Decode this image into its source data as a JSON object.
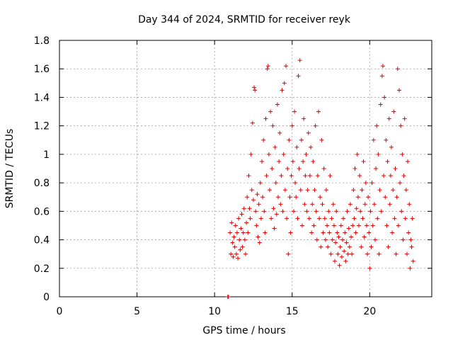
{
  "chart_data": {
    "type": "scatter",
    "title": "Day 344 of 2024, SRMTID for receiver reyk",
    "xlabel": "GPS time / hours",
    "ylabel": "SRMTID / TECUs",
    "xlim": [
      0,
      24
    ],
    "ylim": [
      0,
      1.8
    ],
    "xticks": [
      0,
      5,
      10,
      15,
      20
    ],
    "xtick_labels": [
      "0",
      "5",
      "10",
      "15",
      "20"
    ],
    "yticks": [
      0,
      0.2,
      0.4,
      0.6,
      0.8,
      1,
      1.2,
      1.4,
      1.6,
      1.8
    ],
    "ytick_labels": [
      "0",
      "0.2",
      "0.4",
      "0.6",
      "0.8",
      "1",
      "1.2",
      "1.4",
      "1.6",
      "1.8"
    ],
    "grid": true,
    "marker": "+",
    "marker_color": "#e00000",
    "series": [
      {
        "name": "SRMTID",
        "points": [
          [
            10.85,
            0.0
          ],
          [
            10.9,
            0.0
          ],
          [
            11.0,
            0.45
          ],
          [
            11.05,
            0.3
          ],
          [
            11.1,
            0.52
          ],
          [
            11.15,
            0.38
          ],
          [
            11.2,
            0.28
          ],
          [
            11.25,
            0.42
          ],
          [
            11.3,
            0.35
          ],
          [
            11.35,
            0.5
          ],
          [
            11.4,
            0.3
          ],
          [
            11.45,
            0.45
          ],
          [
            11.5,
            0.27
          ],
          [
            11.55,
            0.55
          ],
          [
            11.6,
            0.4
          ],
          [
            11.65,
            0.33
          ],
          [
            11.7,
            0.48
          ],
          [
            11.75,
            0.58
          ],
          [
            11.8,
            0.35
          ],
          [
            11.85,
            0.45
          ],
          [
            11.9,
            0.62
          ],
          [
            11.95,
            0.4
          ],
          [
            12.0,
            0.3
          ],
          [
            12.05,
            0.52
          ],
          [
            12.1,
            0.7
          ],
          [
            12.15,
            0.45
          ],
          [
            12.2,
            0.85
          ],
          [
            12.25,
            0.62
          ],
          [
            12.3,
            0.55
          ],
          [
            12.35,
            1.0
          ],
          [
            12.4,
            0.75
          ],
          [
            12.45,
            1.22
          ],
          [
            12.5,
            0.68
          ],
          [
            12.55,
            1.47
          ],
          [
            12.6,
            1.45
          ],
          [
            12.65,
            0.6
          ],
          [
            12.7,
            0.5
          ],
          [
            12.75,
            0.72
          ],
          [
            12.8,
            0.42
          ],
          [
            12.85,
            0.65
          ],
          [
            12.9,
            0.38
          ],
          [
            12.95,
            0.8
          ],
          [
            13.0,
            0.55
          ],
          [
            13.05,
            0.95
          ],
          [
            13.1,
            0.7
          ],
          [
            13.15,
            1.1
          ],
          [
            13.2,
            0.6
          ],
          [
            13.25,
            0.45
          ],
          [
            13.3,
            1.25
          ],
          [
            13.35,
            0.85
          ],
          [
            13.4,
            1.6
          ],
          [
            13.45,
            1.62
          ],
          [
            13.5,
            1.0
          ],
          [
            13.55,
            0.75
          ],
          [
            13.6,
            1.3
          ],
          [
            13.65,
            0.55
          ],
          [
            13.7,
            0.9
          ],
          [
            13.75,
            1.2
          ],
          [
            13.8,
            0.62
          ],
          [
            13.85,
            0.48
          ],
          [
            13.9,
            1.05
          ],
          [
            13.95,
            0.8
          ],
          [
            14.0,
            0.58
          ],
          [
            14.05,
            1.35
          ],
          [
            14.1,
            0.7
          ],
          [
            14.15,
            0.95
          ],
          [
            14.2,
            1.15
          ],
          [
            14.25,
            0.65
          ],
          [
            14.3,
            0.85
          ],
          [
            14.35,
            1.45
          ],
          [
            14.4,
            0.6
          ],
          [
            14.45,
            1.0
          ],
          [
            14.5,
            1.5
          ],
          [
            14.55,
            0.75
          ],
          [
            14.6,
            1.62
          ],
          [
            14.65,
            0.55
          ],
          [
            14.7,
            0.9
          ],
          [
            14.75,
            0.3
          ],
          [
            14.8,
            1.1
          ],
          [
            14.85,
            0.7
          ],
          [
            14.9,
            0.45
          ],
          [
            14.95,
            0.85
          ],
          [
            15.0,
            1.2
          ],
          [
            15.05,
            0.95
          ],
          [
            15.1,
            0.6
          ],
          [
            15.15,
            1.3
          ],
          [
            15.2,
            0.8
          ],
          [
            15.25,
            0.7
          ],
          [
            15.3,
            1.05
          ],
          [
            15.35,
            0.55
          ],
          [
            15.4,
            1.55
          ],
          [
            15.45,
            0.9
          ],
          [
            15.5,
            1.66
          ],
          [
            15.55,
            0.75
          ],
          [
            15.6,
            1.1
          ],
          [
            15.65,
            0.5
          ],
          [
            15.7,
            0.95
          ],
          [
            15.75,
            1.25
          ],
          [
            15.8,
            0.65
          ],
          [
            15.85,
            0.85
          ],
          [
            15.9,
            1.0
          ],
          [
            15.95,
            0.6
          ],
          [
            16.0,
            0.75
          ],
          [
            16.05,
            1.15
          ],
          [
            16.1,
            0.55
          ],
          [
            16.15,
            0.85
          ],
          [
            16.2,
            1.05
          ],
          [
            16.25,
            0.45
          ],
          [
            16.3,
            0.65
          ],
          [
            16.35,
            0.95
          ],
          [
            16.4,
            0.5
          ],
          [
            16.45,
            0.75
          ],
          [
            16.5,
            1.2
          ],
          [
            16.55,
            0.6
          ],
          [
            16.6,
            0.4
          ],
          [
            16.65,
            0.85
          ],
          [
            16.7,
            1.3
          ],
          [
            16.75,
            0.55
          ],
          [
            16.8,
            0.7
          ],
          [
            16.85,
            0.35
          ],
          [
            16.9,
            1.1
          ],
          [
            16.95,
            0.65
          ],
          [
            17.0,
            0.45
          ],
          [
            17.05,
            0.9
          ],
          [
            17.1,
            0.55
          ],
          [
            17.15,
            0.4
          ],
          [
            17.2,
            0.75
          ],
          [
            17.25,
            0.5
          ],
          [
            17.3,
            0.35
          ],
          [
            17.35,
            0.6
          ],
          [
            17.4,
            0.45
          ],
          [
            17.45,
            0.85
          ],
          [
            17.5,
            0.3
          ],
          [
            17.55,
            0.55
          ],
          [
            17.6,
            0.4
          ],
          [
            17.65,
            0.65
          ],
          [
            17.7,
            0.5
          ],
          [
            17.75,
            0.25
          ],
          [
            17.8,
            0.38
          ],
          [
            17.85,
            0.6
          ],
          [
            17.9,
            0.45
          ],
          [
            17.95,
            0.3
          ],
          [
            18.0,
            0.42
          ],
          [
            18.05,
            0.22
          ],
          [
            18.1,
            0.35
          ],
          [
            18.15,
            0.5
          ],
          [
            18.2,
            0.28
          ],
          [
            18.25,
            0.4
          ],
          [
            18.3,
            0.55
          ],
          [
            18.35,
            0.32
          ],
          [
            18.4,
            0.45
          ],
          [
            18.45,
            0.25
          ],
          [
            18.5,
            0.38
          ],
          [
            18.55,
            0.6
          ],
          [
            18.6,
            0.3
          ],
          [
            18.65,
            0.48
          ],
          [
            18.7,
            0.35
          ],
          [
            18.75,
            0.65
          ],
          [
            18.8,
            0.42
          ],
          [
            18.85,
            0.3
          ],
          [
            18.9,
            0.5
          ],
          [
            18.95,
            0.75
          ],
          [
            19.0,
            0.55
          ],
          [
            19.05,
            0.9
          ],
          [
            19.1,
            0.45
          ],
          [
            19.15,
            0.62
          ],
          [
            19.2,
            1.0
          ],
          [
            19.25,
            0.7
          ],
          [
            19.3,
            0.5
          ],
          [
            19.35,
            0.85
          ],
          [
            19.4,
            0.6
          ],
          [
            19.45,
            0.35
          ],
          [
            19.5,
            0.75
          ],
          [
            19.55,
            0.55
          ],
          [
            19.6,
            0.95
          ],
          [
            19.65,
            0.42
          ],
          [
            19.7,
            0.65
          ],
          [
            19.75,
            0.8
          ],
          [
            19.8,
            0.5
          ],
          [
            19.85,
            0.3
          ],
          [
            19.9,
            0.7
          ],
          [
            19.95,
            0.45
          ],
          [
            20.0,
            0.2
          ],
          [
            20.05,
            0.6
          ],
          [
            20.1,
            0.35
          ],
          [
            20.15,
            0.8
          ],
          [
            20.2,
            0.5
          ],
          [
            20.25,
            1.1
          ],
          [
            20.3,
            0.65
          ],
          [
            20.35,
            0.4
          ],
          [
            20.4,
            0.9
          ],
          [
            20.45,
            1.2
          ],
          [
            20.5,
            0.55
          ],
          [
            20.55,
            1.0
          ],
          [
            20.6,
            0.3
          ],
          [
            20.65,
            0.75
          ],
          [
            20.7,
            1.35
          ],
          [
            20.75,
            0.6
          ],
          [
            20.8,
            1.55
          ],
          [
            20.85,
            1.62
          ],
          [
            20.9,
            0.85
          ],
          [
            20.95,
            1.4
          ],
          [
            21.0,
            0.7
          ],
          [
            21.05,
            1.1
          ],
          [
            21.1,
            0.5
          ],
          [
            21.15,
            0.95
          ],
          [
            21.2,
            0.35
          ],
          [
            21.25,
            1.25
          ],
          [
            21.3,
            0.65
          ],
          [
            21.35,
            0.85
          ],
          [
            21.4,
            1.05
          ],
          [
            21.45,
            0.45
          ],
          [
            21.5,
            0.75
          ],
          [
            21.55,
            1.3
          ],
          [
            21.6,
            0.55
          ],
          [
            21.65,
            0.9
          ],
          [
            21.7,
            0.3
          ],
          [
            21.75,
            0.7
          ],
          [
            21.8,
            1.6
          ],
          [
            21.85,
            0.5
          ],
          [
            21.9,
            1.45
          ],
          [
            21.95,
            0.8
          ],
          [
            22.0,
            1.2
          ],
          [
            22.05,
            0.6
          ],
          [
            22.1,
            1.0
          ],
          [
            22.15,
            0.4
          ],
          [
            22.2,
            0.85
          ],
          [
            22.25,
            1.25
          ],
          [
            22.3,
            0.55
          ],
          [
            22.35,
            0.75
          ],
          [
            22.4,
            0.3
          ],
          [
            22.45,
            0.95
          ],
          [
            22.5,
            0.45
          ],
          [
            22.55,
            0.65
          ],
          [
            22.6,
            0.2
          ],
          [
            22.65,
            0.4
          ],
          [
            22.7,
            0.35
          ],
          [
            22.75,
            0.55
          ],
          [
            22.8,
            0.25
          ]
        ]
      }
    ]
  }
}
